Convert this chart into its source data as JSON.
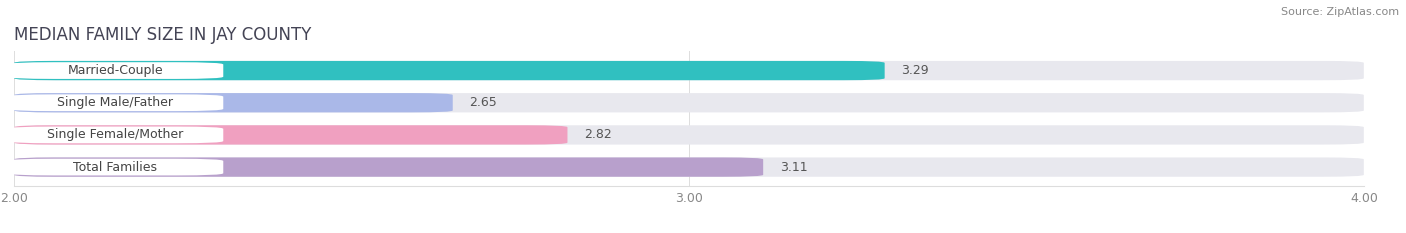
{
  "title": "MEDIAN FAMILY SIZE IN JAY COUNTY",
  "source": "Source: ZipAtlas.com",
  "categories": [
    "Married-Couple",
    "Single Male/Father",
    "Single Female/Mother",
    "Total Families"
  ],
  "values": [
    3.29,
    2.65,
    2.82,
    3.11
  ],
  "bar_colors": [
    "#30c0c0",
    "#aab8e8",
    "#f0a0c0",
    "#b8a0cc"
  ],
  "xlim": [
    2.0,
    4.0
  ],
  "xticks": [
    2.0,
    3.0,
    4.0
  ],
  "xtick_labels": [
    "2.00",
    "3.00",
    "4.00"
  ],
  "background_color": "#ffffff",
  "bar_background_color": "#e8e8ee",
  "title_fontsize": 12,
  "bar_height": 0.6,
  "value_fontsize": 9,
  "label_fontsize": 9
}
